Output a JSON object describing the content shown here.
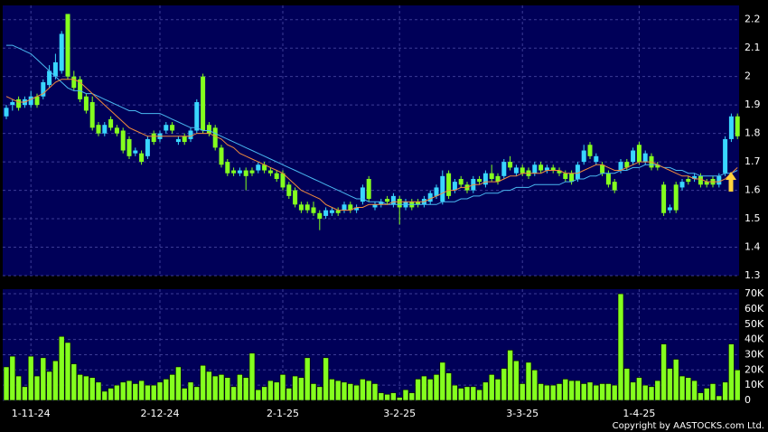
{
  "chart_data": [
    {
      "type": "candlestick",
      "up_color": "#39d6ff",
      "down_color": "#84ff1e",
      "open": [
        1.86,
        1.9,
        1.92,
        1.9,
        1.9,
        1.93,
        1.93,
        1.97,
        2.0,
        2.02,
        2.22,
        2.0,
        1.99,
        1.93,
        1.91,
        1.83,
        1.8,
        1.85,
        1.82,
        1.81,
        1.78,
        1.73,
        1.73,
        1.72,
        1.8,
        1.78,
        1.81,
        1.83,
        1.77,
        1.79,
        1.78,
        1.81,
        2.0,
        1.83,
        1.82,
        1.75,
        1.7,
        1.67,
        1.66,
        1.67,
        1.67,
        1.67,
        1.69,
        1.67,
        1.66,
        1.66,
        1.62,
        1.6,
        1.55,
        1.55,
        1.54,
        1.52,
        1.51,
        1.52,
        1.53,
        1.53,
        1.55,
        1.53,
        1.56,
        1.64,
        1.54,
        1.55,
        1.57,
        1.55,
        1.57,
        1.54,
        1.56,
        1.56,
        1.55,
        1.56,
        1.58,
        1.56,
        1.66,
        1.6,
        1.64,
        1.62,
        1.6,
        1.64,
        1.62,
        1.66,
        1.65,
        1.65,
        1.7,
        1.66,
        1.68,
        1.67,
        1.66,
        1.69,
        1.67,
        1.68,
        1.67,
        1.66,
        1.66,
        1.64,
        1.7,
        1.76,
        1.7,
        1.69,
        1.66,
        1.63,
        1.67,
        1.7,
        1.7,
        1.76,
        1.7,
        1.72,
        1.69,
        1.62,
        1.53,
        1.62,
        1.61,
        1.64,
        1.64,
        1.65,
        1.63,
        1.64,
        1.62,
        1.66,
        1.78,
        1.86
      ],
      "high": [
        1.9,
        1.92,
        1.93,
        1.93,
        1.95,
        1.94,
        1.99,
        2.04,
        2.08,
        2.16,
        2.22,
        2.02,
        2.0,
        1.94,
        1.93,
        1.84,
        1.84,
        1.86,
        1.83,
        1.82,
        1.79,
        1.75,
        1.74,
        1.79,
        1.81,
        1.81,
        1.84,
        1.84,
        1.79,
        1.8,
        1.82,
        1.92,
        2.01,
        1.84,
        1.83,
        1.76,
        1.71,
        1.68,
        1.68,
        1.68,
        1.68,
        1.7,
        1.7,
        1.68,
        1.67,
        1.67,
        1.63,
        1.61,
        1.56,
        1.56,
        1.56,
        1.53,
        1.54,
        1.54,
        1.54,
        1.56,
        1.56,
        1.55,
        1.62,
        1.65,
        1.56,
        1.57,
        1.58,
        1.59,
        1.58,
        1.57,
        1.57,
        1.57,
        1.58,
        1.6,
        1.62,
        1.67,
        1.67,
        1.64,
        1.65,
        1.63,
        1.65,
        1.65,
        1.67,
        1.69,
        1.66,
        1.71,
        1.72,
        1.69,
        1.69,
        1.68,
        1.7,
        1.7,
        1.69,
        1.69,
        1.68,
        1.67,
        1.67,
        1.7,
        1.76,
        1.77,
        1.73,
        1.7,
        1.67,
        1.64,
        1.71,
        1.71,
        1.75,
        1.77,
        1.74,
        1.73,
        1.7,
        1.63,
        1.55,
        1.63,
        1.64,
        1.65,
        1.66,
        1.66,
        1.64,
        1.65,
        1.66,
        1.79,
        1.87,
        1.87
      ],
      "low": [
        1.85,
        1.88,
        1.88,
        1.89,
        1.89,
        1.89,
        1.92,
        1.96,
        1.99,
        2.01,
        1.99,
        1.95,
        1.91,
        1.87,
        1.81,
        1.79,
        1.79,
        1.81,
        1.79,
        1.73,
        1.71,
        1.72,
        1.69,
        1.71,
        1.76,
        1.77,
        1.8,
        1.8,
        1.76,
        1.76,
        1.77,
        1.8,
        1.8,
        1.79,
        1.74,
        1.68,
        1.65,
        1.65,
        1.65,
        1.6,
        1.65,
        1.66,
        1.66,
        1.65,
        1.63,
        1.6,
        1.57,
        1.54,
        1.52,
        1.52,
        1.51,
        1.46,
        1.5,
        1.51,
        1.51,
        1.52,
        1.52,
        1.52,
        1.55,
        1.56,
        1.53,
        1.54,
        1.55,
        1.54,
        1.48,
        1.53,
        1.53,
        1.54,
        1.54,
        1.55,
        1.57,
        1.55,
        1.57,
        1.59,
        1.61,
        1.59,
        1.59,
        1.62,
        1.61,
        1.63,
        1.62,
        1.64,
        1.67,
        1.65,
        1.65,
        1.64,
        1.65,
        1.66,
        1.66,
        1.66,
        1.65,
        1.63,
        1.62,
        1.63,
        1.69,
        1.71,
        1.69,
        1.65,
        1.61,
        1.59,
        1.66,
        1.67,
        1.69,
        1.69,
        1.69,
        1.67,
        1.67,
        1.51,
        1.52,
        1.52,
        1.6,
        1.62,
        1.63,
        1.61,
        1.61,
        1.61,
        1.61,
        1.65,
        1.77,
        1.78
      ],
      "close": [
        1.89,
        1.91,
        1.89,
        1.92,
        1.93,
        1.9,
        1.98,
        2.02,
        2.05,
        2.15,
        2.0,
        1.96,
        1.92,
        1.88,
        1.82,
        1.8,
        1.83,
        1.82,
        1.8,
        1.74,
        1.72,
        1.74,
        1.7,
        1.78,
        1.77,
        1.8,
        1.83,
        1.81,
        1.78,
        1.77,
        1.81,
        1.91,
        1.81,
        1.8,
        1.75,
        1.69,
        1.66,
        1.66,
        1.67,
        1.65,
        1.66,
        1.69,
        1.67,
        1.66,
        1.64,
        1.61,
        1.58,
        1.55,
        1.53,
        1.53,
        1.52,
        1.5,
        1.53,
        1.53,
        1.52,
        1.55,
        1.53,
        1.54,
        1.61,
        1.57,
        1.55,
        1.56,
        1.56,
        1.58,
        1.54,
        1.56,
        1.54,
        1.55,
        1.57,
        1.59,
        1.61,
        1.65,
        1.58,
        1.63,
        1.62,
        1.6,
        1.64,
        1.63,
        1.66,
        1.64,
        1.63,
        1.7,
        1.68,
        1.68,
        1.66,
        1.65,
        1.69,
        1.67,
        1.68,
        1.67,
        1.66,
        1.64,
        1.63,
        1.69,
        1.74,
        1.72,
        1.72,
        1.66,
        1.62,
        1.6,
        1.7,
        1.68,
        1.74,
        1.7,
        1.73,
        1.68,
        1.68,
        1.52,
        1.54,
        1.53,
        1.63,
        1.63,
        1.65,
        1.62,
        1.62,
        1.62,
        1.65,
        1.78,
        1.86,
        1.79
      ],
      "series": [
        {
          "color": "#4ab8f0",
          "values": [
            2.11,
            2.11,
            2.1,
            2.09,
            2.08,
            2.06,
            2.04,
            2.02,
            2.0,
            1.98,
            1.96,
            1.95,
            1.95,
            1.94,
            1.94,
            1.93,
            1.92,
            1.91,
            1.9,
            1.89,
            1.88,
            1.88,
            1.87,
            1.87,
            1.87,
            1.87,
            1.86,
            1.85,
            1.84,
            1.83,
            1.82,
            1.82,
            1.81,
            1.81,
            1.8,
            1.79,
            1.78,
            1.77,
            1.76,
            1.75,
            1.74,
            1.73,
            1.72,
            1.71,
            1.7,
            1.69,
            1.68,
            1.67,
            1.66,
            1.65,
            1.64,
            1.63,
            1.62,
            1.61,
            1.6,
            1.59,
            1.58,
            1.57,
            1.57,
            1.56,
            1.56,
            1.56,
            1.55,
            1.55,
            1.55,
            1.55,
            1.55,
            1.55,
            1.55,
            1.55,
            1.55,
            1.56,
            1.56,
            1.56,
            1.57,
            1.57,
            1.58,
            1.58,
            1.59,
            1.59,
            1.59,
            1.6,
            1.6,
            1.61,
            1.61,
            1.61,
            1.62,
            1.62,
            1.62,
            1.62,
            1.62,
            1.63,
            1.63,
            1.64,
            1.64,
            1.65,
            1.65,
            1.66,
            1.66,
            1.66,
            1.67,
            1.67,
            1.68,
            1.68,
            1.69,
            1.69,
            1.69,
            1.68,
            1.68,
            1.67,
            1.67,
            1.66,
            1.66,
            1.65,
            1.65,
            1.65,
            1.65,
            1.66,
            1.66,
            1.67
          ]
        },
        {
          "color": "#f08a3c",
          "values": [
            1.93,
            1.92,
            1.91,
            1.91,
            1.92,
            1.93,
            1.94,
            1.96,
            1.98,
            1.99,
            1.99,
            1.99,
            1.98,
            1.96,
            1.94,
            1.92,
            1.9,
            1.88,
            1.86,
            1.84,
            1.82,
            1.81,
            1.8,
            1.79,
            1.79,
            1.79,
            1.79,
            1.79,
            1.79,
            1.79,
            1.79,
            1.8,
            1.8,
            1.8,
            1.79,
            1.78,
            1.76,
            1.75,
            1.73,
            1.72,
            1.71,
            1.7,
            1.69,
            1.68,
            1.67,
            1.66,
            1.64,
            1.62,
            1.6,
            1.59,
            1.58,
            1.57,
            1.55,
            1.54,
            1.53,
            1.53,
            1.53,
            1.54,
            1.54,
            1.55,
            1.55,
            1.55,
            1.55,
            1.56,
            1.56,
            1.56,
            1.56,
            1.56,
            1.56,
            1.57,
            1.58,
            1.59,
            1.6,
            1.6,
            1.61,
            1.61,
            1.62,
            1.62,
            1.63,
            1.63,
            1.63,
            1.64,
            1.65,
            1.65,
            1.66,
            1.66,
            1.66,
            1.66,
            1.67,
            1.67,
            1.67,
            1.66,
            1.66,
            1.66,
            1.67,
            1.68,
            1.69,
            1.69,
            1.68,
            1.67,
            1.67,
            1.68,
            1.69,
            1.7,
            1.7,
            1.7,
            1.69,
            1.68,
            1.67,
            1.66,
            1.65,
            1.65,
            1.64,
            1.64,
            1.63,
            1.63,
            1.63,
            1.64,
            1.66,
            1.68
          ]
        }
      ],
      "ylim": [
        1.3,
        2.25
      ],
      "yticks": [
        1.3,
        1.4,
        1.5,
        1.6,
        1.7,
        1.8,
        1.9,
        2,
        2.1,
        2.2
      ],
      "grid": true
    },
    {
      "type": "bar",
      "color": "#84ff1e",
      "categories": [
        null,
        null,
        null,
        null,
        "1-11-24",
        null,
        null,
        null,
        null,
        null,
        null,
        null,
        null,
        null,
        null,
        null,
        null,
        null,
        null,
        null,
        null,
        null,
        null,
        null,
        null,
        "2-12-24",
        null,
        null,
        null,
        null,
        null,
        null,
        null,
        null,
        null,
        null,
        null,
        null,
        null,
        null,
        null,
        null,
        null,
        null,
        null,
        "2-1-25",
        null,
        null,
        null,
        null,
        null,
        null,
        null,
        null,
        null,
        null,
        null,
        null,
        null,
        null,
        null,
        null,
        null,
        null,
        "3-2-25",
        null,
        null,
        null,
        null,
        null,
        null,
        null,
        null,
        null,
        null,
        null,
        null,
        null,
        null,
        null,
        null,
        null,
        null,
        null,
        "3-3-25",
        null,
        null,
        null,
        null,
        null,
        null,
        null,
        null,
        null,
        null,
        null,
        null,
        null,
        null,
        null,
        null,
        null,
        null,
        "1-4-25",
        null,
        null,
        null,
        null,
        null,
        null,
        null,
        null,
        null,
        null,
        null,
        null,
        null,
        null,
        null,
        null
      ],
      "values": [
        22000,
        29000,
        16000,
        9000,
        29000,
        16000,
        28000,
        19000,
        26000,
        42000,
        38000,
        24000,
        17000,
        16000,
        15000,
        12000,
        6000,
        8000,
        10000,
        12000,
        13000,
        11000,
        13000,
        10000,
        10000,
        12000,
        14000,
        17000,
        22000,
        8000,
        12000,
        9000,
        23000,
        19000,
        16000,
        17000,
        15000,
        9000,
        17000,
        15000,
        31000,
        7000,
        9000,
        13000,
        12000,
        17000,
        8000,
        16000,
        15000,
        28000,
        11000,
        9000,
        28000,
        14000,
        13000,
        12000,
        11000,
        10000,
        14000,
        13000,
        11000,
        5000,
        4000,
        5000,
        2000,
        7000,
        5000,
        14000,
        16000,
        14000,
        17000,
        25000,
        18000,
        10000,
        8000,
        9000,
        9000,
        7000,
        12000,
        17000,
        14000,
        21000,
        33000,
        26000,
        11000,
        25000,
        20000,
        11000,
        10000,
        10000,
        11000,
        14000,
        13000,
        13000,
        11000,
        12000,
        10000,
        11000,
        11000,
        10000,
        70000,
        21000,
        12000,
        15000,
        10000,
        9000,
        13000,
        37000,
        21000,
        27000,
        16000,
        15000,
        13000,
        5000,
        8000,
        11000,
        3000,
        12000,
        37000,
        20000
      ],
      "ylim": [
        0,
        73000
      ],
      "yticks": [
        0,
        {
          "value": 10000,
          "label": "10K"
        },
        {
          "value": 20000,
          "label": "20K"
        },
        {
          "value": 30000,
          "label": "30K"
        },
        {
          "value": 40000,
          "label": "40K"
        },
        {
          "value": 50000,
          "label": "50K"
        },
        {
          "value": 60000,
          "label": "60K"
        },
        {
          "value": 70000,
          "label": "70K"
        }
      ],
      "grid": true
    }
  ],
  "copyright": "Copyright by AASTOCKS.com Ltd."
}
